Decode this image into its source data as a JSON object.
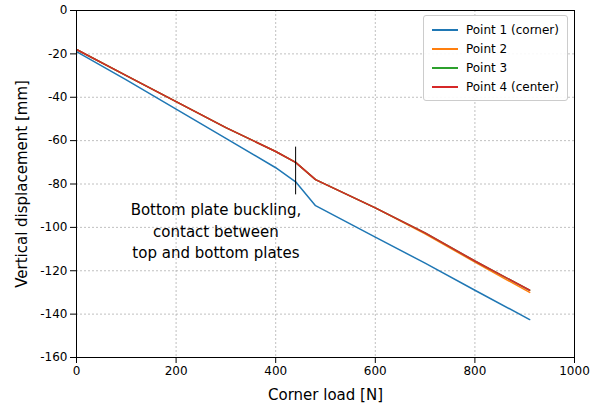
{
  "chart_data": {
    "type": "line",
    "xlabel": "Corner load [N]",
    "ylabel": "Vertical displacement [mm]",
    "x": [
      0,
      100,
      200,
      300,
      400,
      440,
      480,
      600,
      700,
      800,
      910
    ],
    "series": [
      {
        "name": "Point 1 (corner)",
        "color": "#1f77b4",
        "values": [
          -19,
          -32,
          -45.5,
          -59,
          -72.5,
          -79,
          -90,
          -104.5,
          -116.5,
          -129,
          -142.5
        ]
      },
      {
        "name": "Point 2",
        "color": "#ff7f0e",
        "values": [
          -18,
          -30,
          -42,
          -54,
          -65,
          -70,
          -78,
          -91,
          -103,
          -116,
          -130
        ]
      },
      {
        "name": "Point 3",
        "color": "#2ca02c",
        "values": [
          -18,
          -30,
          -42,
          -54,
          -65,
          -70,
          -78,
          -91,
          -102.5,
          -115.5,
          -129
        ]
      },
      {
        "name": "Point 4 (center)",
        "color": "#d62728",
        "values": [
          -18,
          -30,
          -42,
          -54,
          -65,
          -70,
          -78,
          -91,
          -102.5,
          -115.5,
          -129
        ]
      }
    ],
    "xlim": [
      0,
      1000
    ],
    "xticks": [
      0,
      200,
      400,
      600,
      800,
      1000
    ],
    "ylim": [
      -160,
      0
    ],
    "yticks": [
      0,
      -20,
      -40,
      -60,
      -80,
      -100,
      -120,
      -140,
      -160
    ],
    "grid": true,
    "legend": "upper right",
    "annotations": [
      {
        "text": "Bottom plate buckling,\ncontact between\ntop and bottom plates",
        "x": 280,
        "y": -101,
        "marker_x": 440,
        "marker_y1": -63,
        "marker_y2": -85
      }
    ]
  }
}
